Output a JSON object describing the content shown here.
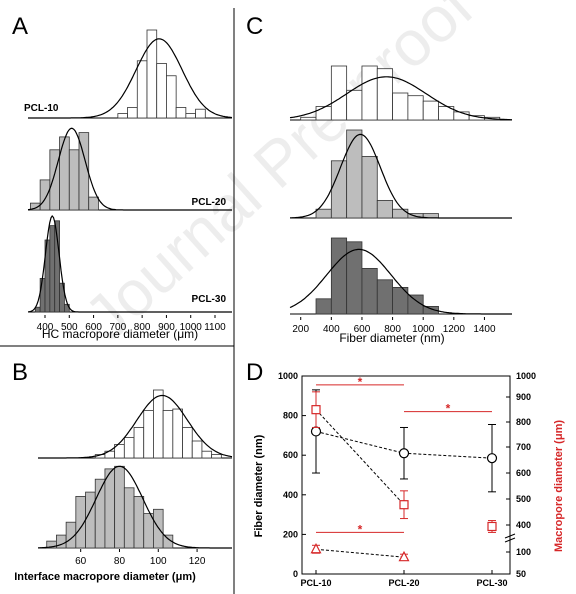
{
  "watermark": "Journal Pre-proof",
  "panel_letters": {
    "A": "A",
    "B": "B",
    "C": "C",
    "D": "D"
  },
  "chart_data": [
    {
      "id": "A",
      "type": "bar",
      "subtype": "stacked-histograms",
      "xlabel": "HC macropore diameter (μm)",
      "xlim": [
        330,
        1170
      ],
      "xticks": [
        400,
        500,
        600,
        700,
        800,
        900,
        1000,
        1100
      ],
      "series": [
        {
          "name": "PCL-10",
          "color": "#ffffff",
          "bin_width": 40,
          "bins": [
            720,
            760,
            800,
            840,
            880,
            920,
            960,
            1000,
            1040
          ],
          "values": [
            0.05,
            0.12,
            0.65,
            1.0,
            0.62,
            0.48,
            0.12,
            0.05,
            0.1
          ],
          "fit_mean": 870,
          "fit_sd": 95,
          "fit_peak": 0.9
        },
        {
          "name": "PCL-20",
          "color": "#bdbdbd",
          "bin_width": 40,
          "bins": [
            360,
            400,
            440,
            480,
            520,
            560,
            600
          ],
          "values": [
            0.08,
            0.35,
            0.7,
            0.85,
            0.7,
            0.9,
            0.15
          ],
          "fit_mean": 510,
          "fit_sd": 55,
          "fit_peak": 0.95
        },
        {
          "name": "PCL-30",
          "color": "#707070",
          "bin_width": 20,
          "bins": [
            370,
            390,
            410,
            430,
            450,
            470,
            490
          ],
          "values": [
            0.05,
            0.35,
            0.75,
            0.9,
            0.95,
            0.3,
            0.08
          ],
          "fit_mean": 430,
          "fit_sd": 28,
          "fit_peak": 1.0
        }
      ]
    },
    {
      "id": "B",
      "type": "bar",
      "subtype": "stacked-histograms",
      "xlabel": "Interface macropore diameter (μm)",
      "xlim": [
        38,
        138
      ],
      "xticks": [
        60,
        80,
        100,
        120
      ],
      "series": [
        {
          "name": "",
          "color": "#ffffff",
          "bin_width": 5,
          "bins": [
            70,
            75,
            80,
            85,
            90,
            95,
            100,
            105,
            110,
            115,
            120,
            125,
            130
          ],
          "values": [
            0.05,
            0.1,
            0.2,
            0.3,
            0.45,
            0.7,
            1.0,
            0.7,
            0.72,
            0.45,
            0.25,
            0.1,
            0.05
          ],
          "fit_mean": 102,
          "fit_sd": 13,
          "fit_peak": 0.92
        },
        {
          "name": "",
          "color": "#bdbdbd",
          "bin_width": 5,
          "bins": [
            45,
            50,
            55,
            60,
            65,
            70,
            75,
            80,
            85,
            90,
            95,
            100,
            105
          ],
          "values": [
            0.08,
            0.15,
            0.3,
            0.6,
            0.65,
            0.8,
            0.92,
            0.95,
            0.7,
            0.6,
            0.4,
            0.45,
            0.15
          ],
          "fit_mean": 80,
          "fit_sd": 12,
          "fit_peak": 0.95
        }
      ]
    },
    {
      "id": "C",
      "type": "bar",
      "subtype": "stacked-histograms",
      "xlabel": "Fiber diameter (nm)",
      "xlim": [
        130,
        1580
      ],
      "xticks": [
        200,
        400,
        600,
        800,
        1000,
        1200,
        1400
      ],
      "series": [
        {
          "name": "",
          "color": "#ffffff",
          "bin_width": 100,
          "bins": [
            250,
            350,
            450,
            550,
            650,
            750,
            850,
            950,
            1050,
            1150,
            1250,
            1350,
            1450
          ],
          "values": [
            0.05,
            0.25,
            1.0,
            0.55,
            1.0,
            0.95,
            0.5,
            0.45,
            0.35,
            0.25,
            0.15,
            0.08,
            0.05
          ],
          "fit_mean": 760,
          "fit_sd": 260,
          "fit_peak": 0.8
        },
        {
          "name": "",
          "color": "#bdbdbd",
          "bin_width": 100,
          "bins": [
            350,
            450,
            550,
            650,
            750,
            850,
            950,
            1050
          ],
          "values": [
            0.1,
            0.65,
            1.0,
            0.7,
            0.2,
            0.1,
            0.05,
            0.05
          ],
          "fit_mean": 590,
          "fit_sd": 130,
          "fit_peak": 0.95
        },
        {
          "name": "",
          "color": "#707070",
          "bin_width": 100,
          "bins": [
            350,
            450,
            550,
            650,
            750,
            850,
            950,
            1050
          ],
          "values": [
            0.2,
            1.0,
            0.95,
            0.6,
            0.45,
            0.35,
            0.25,
            0.1
          ],
          "fit_mean": 580,
          "fit_sd": 210,
          "fit_peak": 0.85
        }
      ]
    },
    {
      "id": "D",
      "type": "line",
      "categories": [
        "PCL-10",
        "PCL-20",
        "PCL-30"
      ],
      "ylabel": "Fiber diameter (nm)",
      "ylim": [
        0,
        1000
      ],
      "yticks": [
        0,
        200,
        400,
        600,
        800,
        1000
      ],
      "y2label": "Macropore diameter (μm)",
      "y2ticks": [
        "50",
        "100",
        "400",
        "500",
        "600",
        "700",
        "800",
        "900",
        "1000"
      ],
      "y2color": "#d62728",
      "series": [
        {
          "name": "",
          "axis": "left",
          "marker": "circle",
          "color": "#000000",
          "x": [
            "PCL-10",
            "PCL-20",
            "PCL-30"
          ],
          "values": [
            720,
            610,
            585
          ],
          "errors": [
            210,
            130,
            170
          ]
        },
        {
          "name": "",
          "axis": "right",
          "marker": "square",
          "color": "#d62728",
          "x": [
            "PCL-10",
            "PCL-20"
          ],
          "values": [
            840,
            510
          ],
          "errors": [
            95,
            65
          ],
          "display_left": [
            830,
            350
          ],
          "display_err": [
            90,
            70
          ]
        },
        {
          "name": "",
          "axis": "right",
          "marker": "square",
          "color": "#d62728",
          "x": [
            "PCL-30"
          ],
          "values": [
            440
          ],
          "errors": [
            35
          ],
          "display_left": [
            240
          ],
          "display_err": [
            30
          ]
        },
        {
          "name": "",
          "axis": "right",
          "marker": "triangle",
          "color": "#d62728",
          "x": [
            "PCL-10",
            "PCL-20"
          ],
          "values": [
            120,
            80
          ],
          "errors": [
            15,
            12
          ],
          "display_left": [
            125,
            85
          ],
          "display_err": [
            20,
            15
          ]
        }
      ],
      "annotations": [
        {
          "text": "*",
          "from": "PCL-10",
          "to": "PCL-20",
          "y": 955,
          "color": "#d62728"
        },
        {
          "text": "*",
          "from": "PCL-20",
          "to": "PCL-30",
          "y": 820,
          "color": "#d62728"
        },
        {
          "text": "*",
          "from": "PCL-10",
          "to": "PCL-20",
          "y": 210,
          "color": "#d62728"
        }
      ]
    }
  ]
}
